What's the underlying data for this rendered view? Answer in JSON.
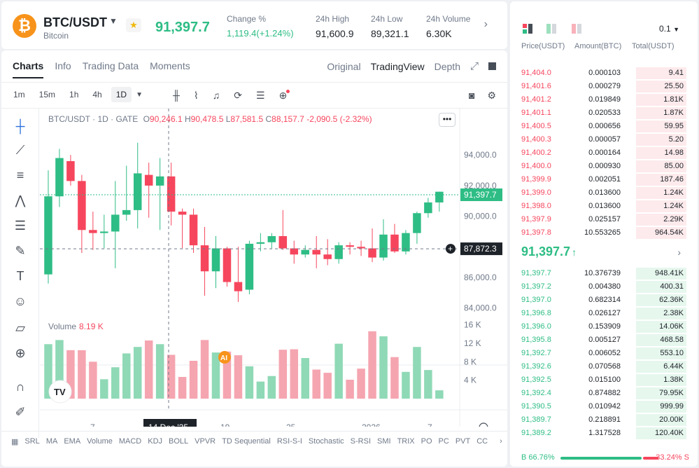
{
  "ticker": {
    "logo_glyph": "₿",
    "pair": "BTC/USDT",
    "name": "Bitcoin",
    "last_price": "91,397.7",
    "change_label": "Change %",
    "change_value": "1,119.4(+1.24%)",
    "high_label": "24h High",
    "high_value": "91,600.9",
    "low_label": "24h Low",
    "low_value": "89,321.1",
    "volume_label": "24h Volume",
    "volume_value": "6.30K"
  },
  "chart_panel": {
    "tabs": [
      "Charts",
      "Info",
      "Trading Data",
      "Moments"
    ],
    "views": [
      "Original",
      "TradingView",
      "Depth"
    ],
    "timeframes": [
      "1m",
      "15m",
      "1h",
      "4h",
      "1D"
    ],
    "ohlc": {
      "symbol": "BTC/USDT · 1D · GATE",
      "o_label": "O",
      "o": "90,246.1",
      "h_label": "H",
      "h": "90,478.5",
      "l_label": "L",
      "l": "87,581.5",
      "c_label": "C",
      "c": "88,157.7",
      "chg": "-2,090.5 (-2.32%)"
    },
    "volume_label": "Volume",
    "volume_value": "8.19 K",
    "price_tag": "91,397.7",
    "cursor_price": "87,872.3",
    "cursor_date": "14 Dec '25",
    "ai_badge": "AI",
    "tv_logo": "TV",
    "indicators": [
      "SRL",
      "MA",
      "EMA",
      "Volume",
      "MACD",
      "KDJ",
      "BOLL",
      "VPVR",
      "TD Sequential",
      "RSI-S-I",
      "Stochastic",
      "S-RSI",
      "SMI",
      "TRIX",
      "PO",
      "PC",
      "PVT",
      "CC"
    ]
  },
  "chart_data": {
    "type": "candlestick",
    "price_axis": {
      "ticks": [
        "94,000.0",
        "92,000.0",
        "90,000.0",
        "88,000.0",
        "86,000.0",
        "84,000.0"
      ],
      "ylim": [
        83300,
        95200
      ]
    },
    "volume_axis": {
      "ticks": [
        "16 K",
        "12 K",
        "8 K",
        "4 K"
      ],
      "ylim": [
        0,
        17000
      ]
    },
    "x_ticks": [
      "7",
      "14 Dec '25",
      "19",
      "25",
      "2026",
      "7"
    ],
    "candles": [
      {
        "o": 86200,
        "h": 93000,
        "l": 85600,
        "c": 91300,
        "v": 11800
      },
      {
        "o": 91300,
        "h": 94400,
        "l": 90600,
        "c": 93800,
        "v": 12700
      },
      {
        "o": 93600,
        "h": 94000,
        "l": 92000,
        "c": 92300,
        "v": 10500
      },
      {
        "o": 92300,
        "h": 92700,
        "l": 87600,
        "c": 89100,
        "v": 10500
      },
      {
        "o": 89100,
        "h": 90300,
        "l": 87800,
        "c": 88900,
        "v": 8000
      },
      {
        "o": 88900,
        "h": 90100,
        "l": 87900,
        "c": 89000,
        "v": 4200
      },
      {
        "o": 89000,
        "h": 92300,
        "l": 86600,
        "c": 90100,
        "v": 6800
      },
      {
        "o": 90100,
        "h": 93300,
        "l": 89700,
        "c": 90400,
        "v": 9800
      },
      {
        "o": 90400,
        "h": 94800,
        "l": 89200,
        "c": 92800,
        "v": 11200
      },
      {
        "o": 92700,
        "h": 93500,
        "l": 89900,
        "c": 92000,
        "v": 12600
      },
      {
        "o": 92000,
        "h": 93800,
        "l": 89100,
        "c": 92600,
        "v": 11800
      },
      {
        "o": 92600,
        "h": 93500,
        "l": 89400,
        "c": 90300,
        "v": 9500
      },
      {
        "o": 90300,
        "h": 90500,
        "l": 87900,
        "c": 90100,
        "v": 4700
      },
      {
        "o": 90100,
        "h": 90500,
        "l": 87600,
        "c": 88100,
        "v": 8200
      },
      {
        "o": 88100,
        "h": 89300,
        "l": 84800,
        "c": 86400,
        "v": 12700
      },
      {
        "o": 86400,
        "h": 88700,
        "l": 85300,
        "c": 87900,
        "v": 10000
      },
      {
        "o": 87900,
        "h": 88000,
        "l": 85400,
        "c": 85700,
        "v": 10200
      },
      {
        "o": 85700,
        "h": 88000,
        "l": 84400,
        "c": 85100,
        "v": 9400
      },
      {
        "o": 85200,
        "h": 88400,
        "l": 84900,
        "c": 88200,
        "v": 7000
      },
      {
        "o": 88200,
        "h": 88900,
        "l": 87700,
        "c": 88300,
        "v": 3700
      },
      {
        "o": 88300,
        "h": 88900,
        "l": 87900,
        "c": 88700,
        "v": 4900
      },
      {
        "o": 88700,
        "h": 90400,
        "l": 87800,
        "c": 87900,
        "v": 10600
      },
      {
        "o": 87900,
        "h": 88400,
        "l": 86900,
        "c": 87500,
        "v": 10700
      },
      {
        "o": 87500,
        "h": 88100,
        "l": 87300,
        "c": 87800,
        "v": 8800
      },
      {
        "o": 87800,
        "h": 88700,
        "l": 86600,
        "c": 87500,
        "v": 6300
      },
      {
        "o": 87500,
        "h": 88500,
        "l": 86800,
        "c": 87200,
        "v": 5600
      },
      {
        "o": 87200,
        "h": 88300,
        "l": 86900,
        "c": 88100,
        "v": 11900
      },
      {
        "o": 88100,
        "h": 88300,
        "l": 87500,
        "c": 88000,
        "v": 4100
      },
      {
        "o": 88000,
        "h": 88400,
        "l": 87400,
        "c": 87900,
        "v": 6500
      },
      {
        "o": 87900,
        "h": 89200,
        "l": 87000,
        "c": 87300,
        "v": 14600
      },
      {
        "o": 87300,
        "h": 89800,
        "l": 87100,
        "c": 88800,
        "v": 13500
      },
      {
        "o": 88800,
        "h": 89500,
        "l": 87600,
        "c": 87700,
        "v": 9000
      },
      {
        "o": 87700,
        "h": 89100,
        "l": 87500,
        "c": 88900,
        "v": 5800
      },
      {
        "o": 88900,
        "h": 90300,
        "l": 88200,
        "c": 90200,
        "v": 11200
      },
      {
        "o": 90200,
        "h": 91200,
        "l": 89900,
        "c": 90900,
        "v": 6200
      },
      {
        "o": 90900,
        "h": 91600,
        "l": 90300,
        "c": 91600,
        "v": 1800
      }
    ]
  },
  "order_book": {
    "step": "0.1",
    "col_price": "Price(USDT)",
    "col_amount": "Amount(BTC)",
    "col_total": "Total(USDT)",
    "asks": [
      {
        "price": "91,404.0",
        "amount": "0.000103",
        "total": "9.41",
        "depth": 0.3
      },
      {
        "price": "91,401.6",
        "amount": "0.000279",
        "total": "25.50",
        "depth": 0.3
      },
      {
        "price": "91,401.2",
        "amount": "0.019849",
        "total": "1.81K",
        "depth": 0.3
      },
      {
        "price": "91,401.1",
        "amount": "0.020533",
        "total": "1.87K",
        "depth": 0.3
      },
      {
        "price": "91,400.5",
        "amount": "0.000656",
        "total": "59.95",
        "depth": 0.3
      },
      {
        "price": "91,400.3",
        "amount": "0.000057",
        "total": "5.20",
        "depth": 0.3
      },
      {
        "price": "91,400.2",
        "amount": "0.000164",
        "total": "14.98",
        "depth": 0.3
      },
      {
        "price": "91,400.0",
        "amount": "0.000930",
        "total": "85.00",
        "depth": 0.3
      },
      {
        "price": "91,399.9",
        "amount": "0.002051",
        "total": "187.46",
        "depth": 0.3
      },
      {
        "price": "91,399.0",
        "amount": "0.013600",
        "total": "1.24K",
        "depth": 0.3
      },
      {
        "price": "91,398.0",
        "amount": "0.013600",
        "total": "1.24K",
        "depth": 0.3
      },
      {
        "price": "91,397.9",
        "amount": "0.025157",
        "total": "2.29K",
        "depth": 0.3
      },
      {
        "price": "91,397.8",
        "amount": "10.553265",
        "total": "964.54K",
        "depth": 0.3
      }
    ],
    "mid_price": "91,397.7",
    "mid_arrow": "↑",
    "bids": [
      {
        "price": "91,397.7",
        "amount": "10.376739",
        "total": "948.41K",
        "depth": 0.3
      },
      {
        "price": "91,397.2",
        "amount": "0.004380",
        "total": "400.31",
        "depth": 0.3
      },
      {
        "price": "91,397.0",
        "amount": "0.682314",
        "total": "62.36K",
        "depth": 0.3
      },
      {
        "price": "91,396.8",
        "amount": "0.026127",
        "total": "2.38K",
        "depth": 0.3
      },
      {
        "price": "91,396.0",
        "amount": "0.153909",
        "total": "14.06K",
        "depth": 0.3
      },
      {
        "price": "91,395.8",
        "amount": "0.005127",
        "total": "468.58",
        "depth": 0.3
      },
      {
        "price": "91,392.7",
        "amount": "0.006052",
        "total": "553.10",
        "depth": 0.3
      },
      {
        "price": "91,392.6",
        "amount": "0.070568",
        "total": "6.44K",
        "depth": 0.3
      },
      {
        "price": "91,392.5",
        "amount": "0.015100",
        "total": "1.38K",
        "depth": 0.3
      },
      {
        "price": "91,392.4",
        "amount": "0.874882",
        "total": "79.95K",
        "depth": 0.3
      },
      {
        "price": "91,390.5",
        "amount": "0.010942",
        "total": "999.99",
        "depth": 0.3
      },
      {
        "price": "91,389.7",
        "amount": "0.218891",
        "total": "20.00K",
        "depth": 0.3
      },
      {
        "price": "91,389.2",
        "amount": "1.317528",
        "total": "120.40K",
        "depth": 0.3
      }
    ],
    "buy_ratio": "B 66.76%",
    "sell_ratio": "33.24% S"
  },
  "colors": {
    "up": "#2ebd85",
    "down": "#f6465d",
    "up_volume": "#8fd9b6",
    "down_volume": "#f5a5b0"
  }
}
